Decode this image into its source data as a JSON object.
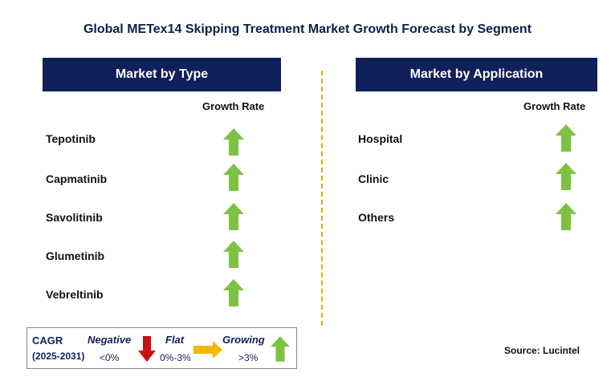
{
  "title": "Global METex14 Skipping Treatment Market Growth Forecast by Segment",
  "left_panel": {
    "header": "Market by Type",
    "column_label": "Growth Rate",
    "items": [
      "Tepotinib",
      "Capmatinib",
      "Savolitinib",
      "Glumetinib",
      "Vebreltinib"
    ]
  },
  "right_panel": {
    "header": "Market by Application",
    "column_label": "Growth Rate",
    "items": [
      "Hospital",
      "Clinic",
      "Others"
    ]
  },
  "legend": {
    "cagr": "CAGR",
    "period": "(2025-2031)",
    "negative_label": "Negative",
    "negative_range": "<0%",
    "flat_label": "Flat",
    "flat_range": "0%-3%",
    "growing_label": "Growing",
    "growing_range": ">3%"
  },
  "source": "Source: Lucintel",
  "colors": {
    "header_bg": "#10205a",
    "up_arrow": "#7dc242",
    "down_arrow": "#cc1010",
    "flat_arrow": "#f5b800",
    "divider": "#f0a800"
  }
}
